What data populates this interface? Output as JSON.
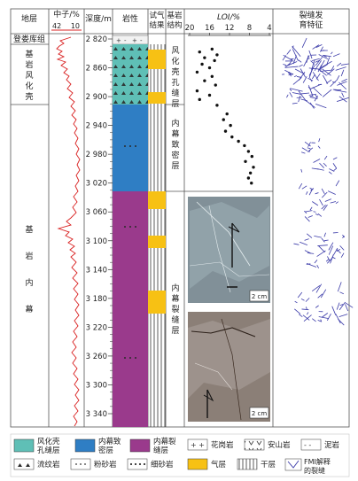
{
  "headers": {
    "formation": "地层",
    "neutron": "中子/%",
    "neutron_left": "42",
    "neutron_right": "10",
    "depth": "深度/m",
    "lithology": "岩性",
    "gas_test": "试气结果",
    "structure": "基岩结构",
    "loi": "LOI/%",
    "fracture": "裂缝发育特征"
  },
  "formations": [
    {
      "label": "登娄库组"
    },
    {
      "label": "基岩风化壳"
    },
    {
      "label": "基岩内幕"
    }
  ],
  "structures": [
    {
      "label": "风化壳孔缝层"
    },
    {
      "label": "内幕致密层"
    },
    {
      "label": "内幕裂缝层"
    }
  ],
  "depth_ticks": [
    "2 820",
    "2 860",
    "2 900",
    "2 940",
    "2 980",
    "3 020",
    "3 060",
    "3 100",
    "3 140",
    "3 180",
    "3 220",
    "3 260",
    "3 300",
    "3 340"
  ],
  "loi_ticks": [
    "20",
    "16",
    "12",
    "8",
    "4"
  ],
  "loi_points": [
    {
      "depth": 2834,
      "loi": 15.5
    },
    {
      "depth": 2838,
      "loi": 18.0
    },
    {
      "depth": 2842,
      "loi": 14.5
    },
    {
      "depth": 2846,
      "loi": 17.0
    },
    {
      "depth": 2850,
      "loi": 15.0
    },
    {
      "depth": 2855,
      "loi": 17.5
    },
    {
      "depth": 2860,
      "loi": 16.0
    },
    {
      "depth": 2866,
      "loi": 18.5
    },
    {
      "depth": 2872,
      "loi": 15.5
    },
    {
      "depth": 2878,
      "loi": 17.0
    },
    {
      "depth": 2884,
      "loi": 14.8
    },
    {
      "depth": 2892,
      "loi": 18.5
    },
    {
      "depth": 2898,
      "loi": 16.0
    },
    {
      "depth": 2904,
      "loi": 18.0
    },
    {
      "depth": 2912,
      "loi": 14.5
    },
    {
      "depth": 2924,
      "loi": 12.5
    },
    {
      "depth": 2932,
      "loi": 13.2
    },
    {
      "depth": 2940,
      "loi": 11.8
    },
    {
      "depth": 2948,
      "loi": 12.8
    },
    {
      "depth": 2956,
      "loi": 11.5
    },
    {
      "depth": 2962,
      "loi": 10.2
    },
    {
      "depth": 2968,
      "loi": 9.0
    },
    {
      "depth": 2976,
      "loi": 8.2
    },
    {
      "depth": 2983,
      "loi": 7.5
    },
    {
      "depth": 2990,
      "loi": 8.8
    },
    {
      "depth": 2998,
      "loi": 7.2
    },
    {
      "depth": 3006,
      "loi": 7.8
    },
    {
      "depth": 3013,
      "loi": 8.2
    },
    {
      "depth": 3020,
      "loi": 7.6
    }
  ],
  "photo_scale": "2 cm",
  "legend": [
    {
      "label": "风化壳孔缝层",
      "symbol": "teal-fill"
    },
    {
      "label": "内幕致密层",
      "symbol": "blue-fill"
    },
    {
      "label": "内幕裂缝层",
      "symbol": "purple-fill"
    },
    {
      "label": "花岗岩",
      "symbol": "plus-pattern"
    },
    {
      "label": "安山岩",
      "symbol": "v-pattern"
    },
    {
      "label": "泥岩",
      "symbol": "dash-pattern"
    },
    {
      "label": "流纹岩",
      "symbol": "triangle-pattern"
    },
    {
      "label": "粉砂岩",
      "symbol": "dot-pattern"
    },
    {
      "label": "细砂岩",
      "symbol": "dense-dot-pattern"
    },
    {
      "label": "气层",
      "symbol": "yellow-fill"
    },
    {
      "label": "干层",
      "symbol": "vertical-lines"
    },
    {
      "label": "FMI解释的裂缝",
      "symbol": "fracture-marker"
    }
  ],
  "colors": {
    "teal": "#5fbfb6",
    "blue": "#2f7ec4",
    "purple": "#9a3a8c",
    "yellow": "#f7c114",
    "neutron": "#d92020",
    "fracture": "#3a3aa8"
  }
}
